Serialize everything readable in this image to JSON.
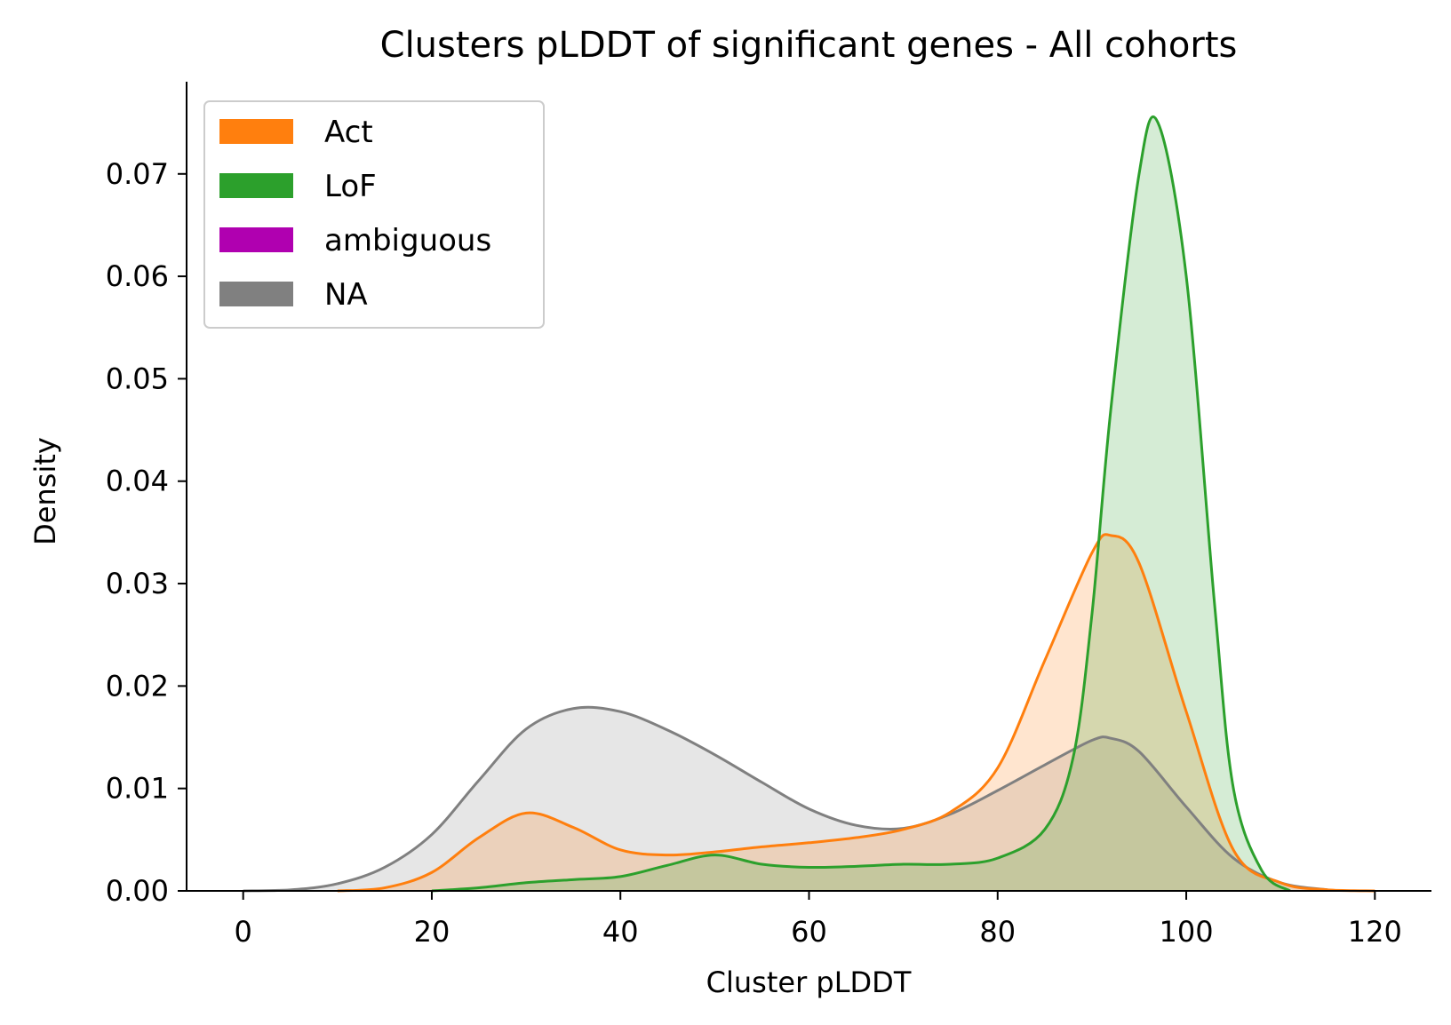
{
  "chart_data": {
    "type": "area",
    "title": "Clusters pLDDT of significant genes - All cohorts",
    "xlabel": "Cluster pLDDT",
    "ylabel": "Density",
    "xlim": [
      -6,
      126
    ],
    "ylim": [
      0,
      0.079
    ],
    "xticks": [
      0,
      20,
      40,
      60,
      80,
      100,
      120
    ],
    "yticks": [
      0.0,
      0.01,
      0.02,
      0.03,
      0.04,
      0.05,
      0.06,
      0.07
    ],
    "xtick_labels": [
      "0",
      "20",
      "40",
      "60",
      "80",
      "100",
      "120"
    ],
    "ytick_labels": [
      "0.00",
      "0.01",
      "0.02",
      "0.03",
      "0.04",
      "0.05",
      "0.06",
      "0.07"
    ],
    "grid": false,
    "legend_position": "top-left",
    "legend": [
      {
        "label": "Act",
        "color": "#ff7f0e"
      },
      {
        "label": "LoF",
        "color": "#2ca02c"
      },
      {
        "label": "ambiguous",
        "color": "#b000b0"
      },
      {
        "label": "NA",
        "color": "#808080"
      }
    ],
    "series": [
      {
        "name": "NA",
        "color": "#808080",
        "x": [
          0,
          5,
          10,
          15,
          20,
          25,
          30,
          35,
          40,
          45,
          50,
          55,
          60,
          65,
          70,
          75,
          80,
          85,
          90,
          92,
          95,
          100,
          105,
          110,
          115
        ],
        "y": [
          0.0,
          0.0001,
          0.0007,
          0.0023,
          0.0055,
          0.0108,
          0.0158,
          0.0178,
          0.0175,
          0.0157,
          0.0133,
          0.0106,
          0.008,
          0.0064,
          0.0061,
          0.0075,
          0.0098,
          0.0123,
          0.0147,
          0.0149,
          0.0136,
          0.0082,
          0.0032,
          0.0008,
          0.0001
        ]
      },
      {
        "name": "Act",
        "color": "#ff7f0e",
        "x": [
          10,
          15,
          20,
          25,
          30,
          35,
          40,
          45,
          50,
          55,
          60,
          65,
          70,
          75,
          80,
          85,
          90,
          92,
          95,
          100,
          105,
          110,
          115,
          120
        ],
        "y": [
          0.0,
          0.0003,
          0.0018,
          0.0052,
          0.0076,
          0.0062,
          0.004,
          0.0035,
          0.0038,
          0.0043,
          0.0047,
          0.0052,
          0.006,
          0.0077,
          0.012,
          0.0225,
          0.033,
          0.0347,
          0.032,
          0.0175,
          0.004,
          0.0008,
          0.0001,
          0.0
        ]
      },
      {
        "name": "LoF",
        "color": "#2ca02c",
        "x": [
          20,
          25,
          30,
          35,
          40,
          45,
          50,
          55,
          60,
          65,
          70,
          75,
          80,
          85,
          88,
          90,
          92,
          95,
          97,
          100,
          103,
          105,
          108,
          111
        ],
        "y": [
          0.0,
          0.0003,
          0.0008,
          0.0011,
          0.0014,
          0.0025,
          0.0035,
          0.0026,
          0.0023,
          0.0024,
          0.0026,
          0.0026,
          0.0032,
          0.006,
          0.013,
          0.027,
          0.047,
          0.07,
          0.075,
          0.06,
          0.028,
          0.01,
          0.002,
          0.0
        ]
      },
      {
        "name": "ambiguous",
        "color": "#b000b0",
        "x": [],
        "y": []
      }
    ]
  }
}
